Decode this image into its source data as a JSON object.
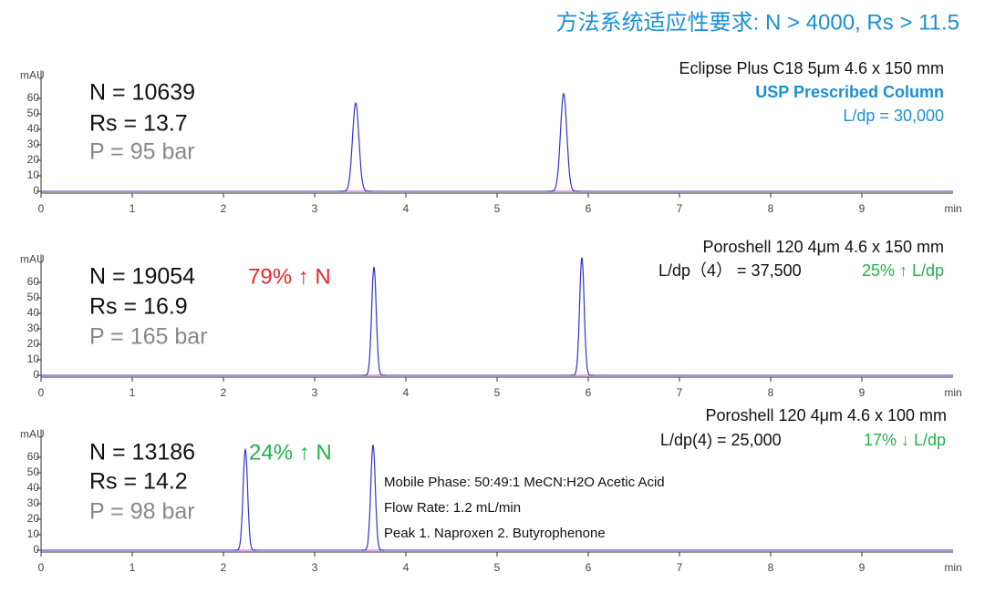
{
  "header": {
    "title": "方法系统适应性要求: N > 4000, Rs > 11.5",
    "color": "#1a8fd4"
  },
  "chart_data": [
    {
      "type": "chromatogram",
      "y_label": "mAU",
      "x_label": "min",
      "xlim": [
        0,
        10
      ],
      "xticks": [
        0,
        1,
        2,
        3,
        4,
        5,
        6,
        7,
        8,
        9
      ],
      "ylim": [
        0,
        78
      ],
      "yticks": [
        0,
        10,
        20,
        30,
        40,
        50,
        60
      ],
      "color": "#3333cc",
      "peaks": [
        {
          "time": 3.45,
          "height": 57
        },
        {
          "time": 5.73,
          "height": 63
        }
      ],
      "stats": [
        "N = 10639",
        "Rs = 13.7",
        "P = 95 bar"
      ],
      "column": [
        {
          "text": "Eclipse Plus C18 5μm 4.6 x 150 mm",
          "color": "#111111",
          "bold": false
        },
        {
          "text": "USP Prescribed Column",
          "color": "#1a8fd4",
          "bold": true
        },
        {
          "text": "L/dp = 30,000",
          "color": "#1a8fd4",
          "bold": false
        }
      ]
    },
    {
      "type": "chromatogram",
      "y_label": "mAU",
      "x_label": "min",
      "xlim": [
        0,
        10
      ],
      "xticks": [
        0,
        1,
        2,
        3,
        4,
        5,
        6,
        7,
        8,
        9
      ],
      "ylim": [
        0,
        78
      ],
      "yticks": [
        0,
        10,
        20,
        30,
        40,
        50,
        60
      ],
      "color": "#3333cc",
      "peaks": [
        {
          "time": 3.65,
          "height": 70
        },
        {
          "time": 5.93,
          "height": 76
        }
      ],
      "stats": [
        "N = 19054",
        "Rs = 16.9",
        "P = 165 bar"
      ],
      "improvement": {
        "text": "79% ↑ N",
        "color": "#e8262b"
      },
      "column": [
        {
          "text": "Poroshell 120 4μm 4.6 x 150 mm",
          "color": "#111111",
          "bold": false
        },
        {
          "text": "L/dp（4） = 37,500",
          "color": "#111111",
          "bold": false
        },
        {
          "text": "25% ↑ L/dp",
          "color": "#22b14c",
          "bold": false
        }
      ]
    },
    {
      "type": "chromatogram",
      "y_label": "mAU",
      "x_label": "min",
      "xlim": [
        0,
        10
      ],
      "xticks": [
        0,
        1,
        2,
        3,
        4,
        5,
        6,
        7,
        8,
        9
      ],
      "ylim": [
        0,
        78
      ],
      "yticks": [
        0,
        10,
        20,
        30,
        40,
        50,
        60
      ],
      "color": "#3333cc",
      "peaks": [
        {
          "time": 2.24,
          "height": 65
        },
        {
          "time": 3.64,
          "height": 68
        }
      ],
      "stats": [
        "N = 13186",
        "Rs = 14.2",
        "P = 98 bar"
      ],
      "improvement": {
        "text": "24% ↑ N",
        "color": "#22b14c"
      },
      "column": [
        {
          "text": "Poroshell 120 4μm 4.6 x 100 mm",
          "color": "#111111",
          "bold": false
        },
        {
          "text": "L/dp(4) = 25,000",
          "color": "#111111",
          "bold": false
        },
        {
          "text": "17% ↓ L/dp",
          "color": "#22b14c",
          "bold": false
        }
      ],
      "notes": [
        "Mobile Phase:  50:49:1 MeCN:H2O Acetic Acid",
        "Flow Rate: 1.2 mL/min",
        "Peak 1. Naproxen  2.    Butyrophenone"
      ]
    }
  ]
}
